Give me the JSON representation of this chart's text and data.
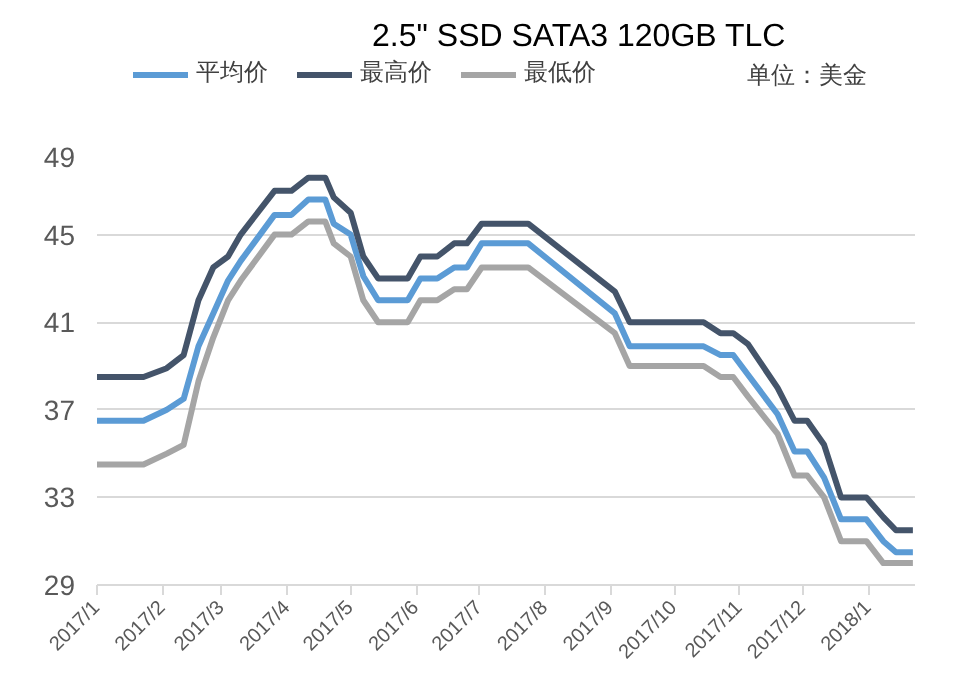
{
  "chart_data": {
    "type": "line",
    "title": "2.5\" SSD SATA3 120GB TLC",
    "x": [
      "2017-01-01",
      "2017-01-23",
      "2017-02-03",
      "2017-02-11",
      "2017-02-18",
      "2017-02-25",
      "2017-03-04",
      "2017-03-10",
      "2017-03-26",
      "2017-04-03",
      "2017-04-11",
      "2017-04-19",
      "2017-04-23",
      "2017-05-01",
      "2017-05-07",
      "2017-05-14",
      "2017-05-28",
      "2017-06-03",
      "2017-06-11",
      "2017-06-19",
      "2017-06-25",
      "2017-07-02",
      "2017-07-24",
      "2017-09-03",
      "2017-09-10",
      "2017-10-15",
      "2017-10-23",
      "2017-10-29",
      "2017-11-05",
      "2017-11-19",
      "2017-11-27",
      "2017-12-03",
      "2017-12-11",
      "2017-12-19",
      "2017-12-31",
      "2018-01-08",
      "2018-01-14",
      "2018-01-22"
    ],
    "series": [
      {
        "name": "平均价",
        "color": "#5b9bd5",
        "values": [
          36.5,
          36.5,
          37,
          37.5,
          39.9,
          41.4,
          42.9,
          43.8,
          45.9,
          45.9,
          46.6,
          46.6,
          45.5,
          45,
          43.1,
          42,
          42,
          43,
          43,
          43.5,
          43.5,
          44.6,
          44.6,
          41.4,
          39.9,
          39.9,
          39.5,
          39.5,
          38.6,
          36.8,
          35.1,
          35.1,
          33.9,
          32,
          32,
          31,
          30.5,
          30.5
        ]
      },
      {
        "name": "最高价",
        "color": "#44546a",
        "values": [
          38.5,
          38.5,
          38.9,
          39.5,
          42,
          43.5,
          44,
          45,
          47,
          47,
          47.6,
          47.6,
          46.7,
          46,
          44,
          43,
          43,
          44,
          44,
          44.6,
          44.6,
          45.5,
          45.5,
          42.4,
          41,
          41,
          40.5,
          40.5,
          40,
          38,
          36.5,
          36.5,
          35.4,
          33,
          33,
          32.1,
          31.5,
          31.5
        ]
      },
      {
        "name": "最低价",
        "color": "#a5a5a5",
        "values": [
          34.5,
          34.5,
          35,
          35.4,
          38.3,
          40.3,
          42,
          42.9,
          45,
          45,
          45.6,
          45.6,
          44.6,
          44,
          42,
          41,
          41,
          42,
          42,
          42.5,
          42.5,
          43.5,
          43.5,
          40.5,
          39,
          39,
          38.5,
          38.5,
          37.6,
          35.9,
          34,
          34,
          33,
          31,
          31,
          30,
          30,
          30
        ]
      }
    ],
    "xlim": [
      "2017-01-01",
      "2018-01-23"
    ],
    "xticks": [
      {
        "value": "2017-01-01",
        "label": "2017/1"
      },
      {
        "value": "2017-02-01",
        "label": "2017/2"
      },
      {
        "value": "2017-03-01",
        "label": "2017/3"
      },
      {
        "value": "2017-04-01",
        "label": "2017/4"
      },
      {
        "value": "2017-05-01",
        "label": "2017/5"
      },
      {
        "value": "2017-06-01",
        "label": "2017/6"
      },
      {
        "value": "2017-07-01",
        "label": "2017/7"
      },
      {
        "value": "2017-08-01",
        "label": "2017/8"
      },
      {
        "value": "2017-09-01",
        "label": "2017/9"
      },
      {
        "value": "2017-10-01",
        "label": "2017/10"
      },
      {
        "value": "2017-11-01",
        "label": "2017/11"
      },
      {
        "value": "2017-12-01",
        "label": "2017/12"
      },
      {
        "value": "2018-01-01",
        "label": "2018/1"
      }
    ],
    "ylim": [
      29,
      49
    ],
    "yticks": [
      29,
      33,
      37,
      41,
      45,
      49
    ],
    "grid": "y",
    "legend": "top",
    "marker": "none",
    "line_style": "solid",
    "annotations": [
      "单位：美金"
    ]
  }
}
